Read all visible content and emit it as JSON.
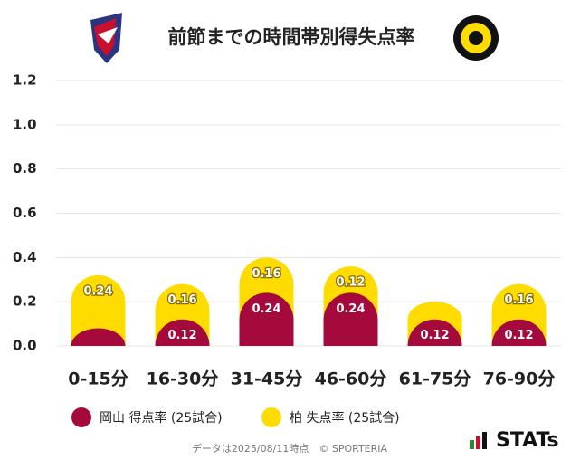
{
  "chart_data": {
    "type": "bar",
    "stacked": true,
    "title": "前節までの時間帯別得失点率",
    "categories": [
      "0-15分",
      "16-30分",
      "31-45分",
      "46-60分",
      "61-75分",
      "76-90分"
    ],
    "series": [
      {
        "name": "岡山 得点率 (25試合)",
        "color": "#a50a3c",
        "values": [
          0.08,
          0.12,
          0.24,
          0.24,
          0.12,
          0.12
        ],
        "value_labels": [
          null,
          "0.12",
          "0.24",
          "0.24",
          "0.12",
          "0.12"
        ]
      },
      {
        "name": "柏 失点率 (25試合)",
        "color": "#ffdc00",
        "values": [
          0.24,
          0.16,
          0.16,
          0.12,
          0.08,
          0.16
        ],
        "value_labels": [
          "0.24",
          "0.16",
          "0.16",
          "0.12",
          null,
          "0.16"
        ]
      }
    ],
    "ylim": [
      0,
      1.2
    ],
    "yticks": [
      {
        "value": 0,
        "label": "0.0"
      },
      0.2,
      0.4,
      0.6,
      0.8,
      {
        "value": 1,
        "label": "1.0"
      },
      1.2
    ],
    "grid": true,
    "footnote": "データは2025/08/11時点　© SPORTERIA",
    "brand": "STATs"
  }
}
